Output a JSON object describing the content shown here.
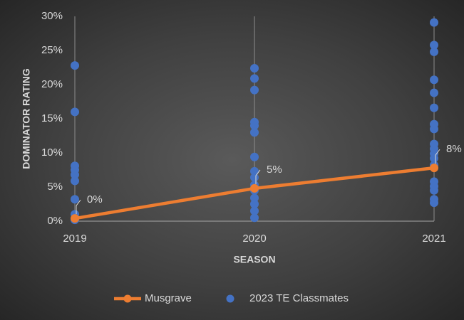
{
  "chart_data": {
    "type": "combo",
    "xlabel": "SEASON",
    "ylabel": "DOMINATOR RATING",
    "xlim": [
      2019,
      2021
    ],
    "xticks": [
      2019,
      2020,
      2021
    ],
    "ylim": [
      0,
      30
    ],
    "yticks": [
      {
        "value": 0,
        "label": "0%"
      },
      {
        "value": 5,
        "label": "5%"
      },
      {
        "value": 10,
        "label": "10%"
      },
      {
        "value": 15,
        "label": "15%"
      },
      {
        "value": 20,
        "label": "20%"
      },
      {
        "value": 25,
        "label": "25%"
      },
      {
        "value": 30,
        "label": "30%"
      }
    ],
    "grid": "x",
    "series": [
      {
        "name": "Musgrave",
        "type": "line",
        "color": "#ED7D31",
        "x": [
          2019,
          2020,
          2021
        ],
        "values": [
          0.4,
          4.8,
          7.8
        ],
        "value_labels": [
          "0%",
          "5%",
          "8%"
        ]
      },
      {
        "name": "2023 TE Classmates",
        "type": "scatter",
        "color": "#4472C4",
        "x": [
          2019,
          2019,
          2019,
          2019,
          2019,
          2019,
          2019,
          2019,
          2019,
          2020,
          2020,
          2020,
          2020,
          2020,
          2020,
          2020,
          2020,
          2020,
          2020,
          2020,
          2020,
          2020,
          2020,
          2020,
          2021,
          2021,
          2021,
          2021,
          2021,
          2021,
          2021,
          2021,
          2021,
          2021,
          2021,
          2021,
          2021,
          2021,
          2021,
          2021,
          2021,
          2021
        ],
        "values": [
          22.8,
          16.0,
          8.1,
          7.5,
          6.8,
          5.9,
          3.2,
          1.0,
          0.2,
          22.4,
          20.9,
          19.2,
          14.5,
          14.0,
          13.0,
          9.4,
          7.3,
          6.4,
          5.3,
          4.5,
          3.4,
          2.5,
          1.5,
          0.5,
          29.1,
          25.8,
          24.8,
          20.7,
          18.8,
          16.6,
          14.2,
          13.5,
          11.3,
          10.6,
          9.9,
          9.2,
          8.2,
          5.8,
          5.1,
          4.5,
          3.2,
          2.7
        ]
      }
    ]
  }
}
